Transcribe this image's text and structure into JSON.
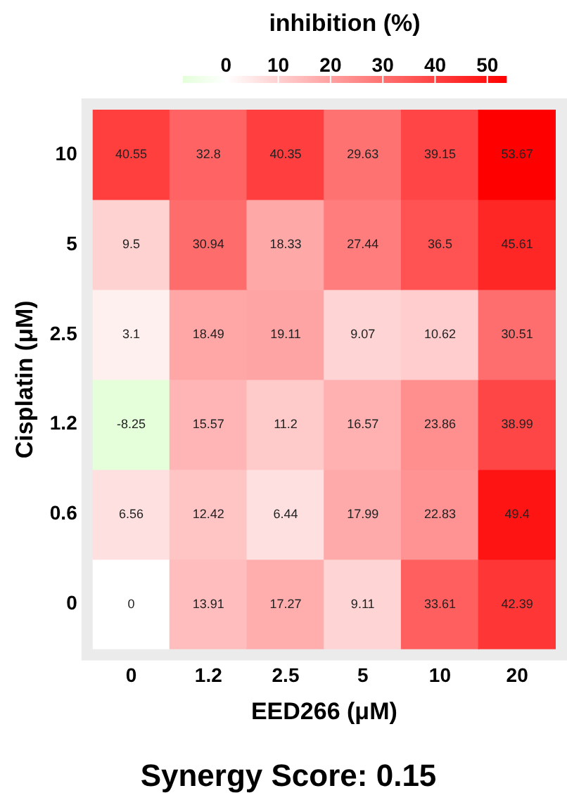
{
  "chart_data": {
    "type": "heatmap",
    "xlabel": "EED266 (μM)",
    "ylabel": "Cisplatin (μM)",
    "legend_title": "inhibition (%)",
    "categories": [
      "0",
      "1.2",
      "2.5",
      "5",
      "10",
      "20"
    ],
    "y_categories": [
      "10",
      "5",
      "2.5",
      "1.2",
      "0.6",
      "0"
    ],
    "cells": [
      [
        40.55,
        32.8,
        40.35,
        29.63,
        39.15,
        53.67
      ],
      [
        9.5,
        30.94,
        18.33,
        27.44,
        36.5,
        45.61
      ],
      [
        3.1,
        18.49,
        19.11,
        9.07,
        10.62,
        30.51
      ],
      [
        -8.25,
        15.57,
        11.2,
        16.57,
        23.86,
        38.99
      ],
      [
        6.56,
        12.42,
        6.44,
        17.99,
        22.83,
        49.4
      ],
      [
        0,
        13.91,
        17.27,
        9.11,
        33.61,
        42.39
      ]
    ],
    "clim": [
      -8.25,
      53.67
    ],
    "cticks": [
      0,
      10,
      20,
      30,
      40,
      50
    ],
    "data_labels": true,
    "annotations": [
      "Synergy Score: 0.15"
    ]
  }
}
